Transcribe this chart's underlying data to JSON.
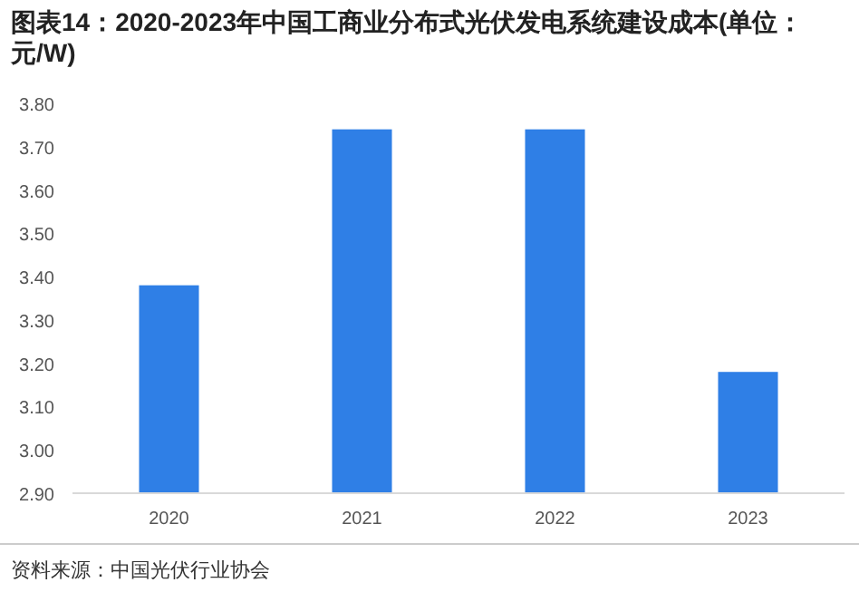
{
  "chart_data": {
    "type": "bar",
    "title": "图表14：2020-2023年中国工商业分布式光伏发电系统建设成本(单位：元/W)",
    "categories": [
      "2020",
      "2021",
      "2022",
      "2023"
    ],
    "values": [
      3.38,
      3.74,
      3.74,
      3.18
    ],
    "color": "#2f7fe6",
    "ylim": [
      2.9,
      3.8
    ],
    "yticks": [
      {
        "value": 2.9,
        "label": "2.90"
      },
      {
        "value": 3.0,
        "label": "3.00"
      },
      {
        "value": 3.1,
        "label": "3.10"
      },
      {
        "value": 3.2,
        "label": "3.20"
      },
      {
        "value": 3.3,
        "label": "3.30"
      },
      {
        "value": 3.4,
        "label": "3.40"
      },
      {
        "value": 3.5,
        "label": "3.50"
      },
      {
        "value": 3.6,
        "label": "3.60"
      },
      {
        "value": 3.7,
        "label": "3.70"
      },
      {
        "value": 3.8,
        "label": "3.80"
      }
    ],
    "grid": false,
    "annotations": [
      "资料来源：中国光伏行业协会"
    ]
  }
}
